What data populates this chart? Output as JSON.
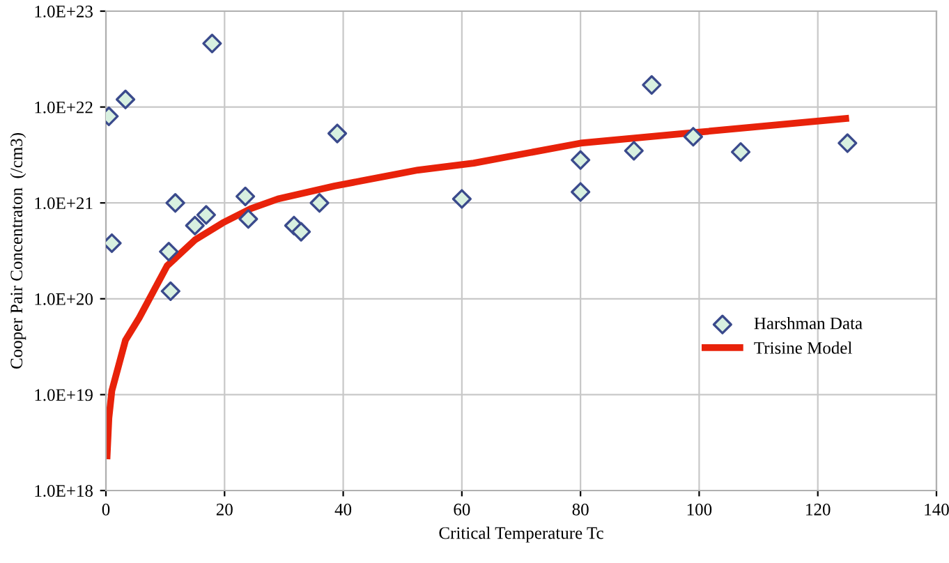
{
  "chart_data": {
    "type": "scatter",
    "xlabel": "Critical Temperature Tc",
    "ylabel": "Cooper Pair Concentraton  (/cm3)",
    "log": "y",
    "xlim": [
      0,
      140
    ],
    "xticks": [
      0,
      20,
      40,
      60,
      80,
      100,
      120,
      140
    ],
    "ylim": [
      1e+18,
      1e+23
    ],
    "yticks": [
      {
        "value": 1e+18,
        "label": "1.0E+18"
      },
      {
        "value": 1e+19,
        "label": "1.0E+19"
      },
      {
        "value": 1e+20,
        "label": "1.0E+20"
      },
      {
        "value": 1e+21,
        "label": "1.0E+21"
      },
      {
        "value": 1e+22,
        "label": "1.0E+22"
      },
      {
        "value": 1e+23,
        "label": "1.0E+23"
      }
    ],
    "grid": true,
    "legend": "right",
    "series": [
      {
        "name": "Harshman Data",
        "marker": "diamond",
        "color": "#3a4a8c",
        "x": [
          0.5,
          1,
          3.3,
          10.6,
          10.9,
          11.7,
          15,
          16.9,
          17.9,
          23.5,
          24,
          31.7,
          32.9,
          36,
          39,
          60,
          80,
          80,
          89,
          92,
          99,
          107,
          125
        ],
        "values": [
          8e+21,
          3.8e+20,
          1.2e+22,
          3.1e+20,
          1.2e+20,
          1e+21,
          5.8e+20,
          7.5e+20,
          4.6e+22,
          1.17e+21,
          6.8e+20,
          5.8e+20,
          5e+20,
          1e+21,
          5.3e+21,
          1.1e+21,
          1.3e+21,
          2.8e+21,
          3.5e+21,
          1.7e+22,
          4.9e+21,
          3.4e+21,
          4.2e+21
        ]
      },
      {
        "name": "Trisine Model",
        "type": "line",
        "marker": "none",
        "color": "#e8220a",
        "x": [
          0.2,
          0.5,
          1,
          3.3,
          5.6,
          10.3,
          15,
          19.7,
          24.4,
          29,
          38.5,
          52.6,
          62,
          80,
          99,
          124.7
        ],
        "values": [
          2.3e+18,
          5.7e+18,
          1.1e+19,
          3.7e+19,
          6.3e+19,
          2.2e+20,
          4.1e+20,
          6.2e+20,
          8.7e+20,
          1.1e+21,
          1.5e+21,
          2.2e+21,
          2.6e+21,
          4.2e+21,
          5.4e+21,
          7.6e+21
        ]
      }
    ]
  }
}
